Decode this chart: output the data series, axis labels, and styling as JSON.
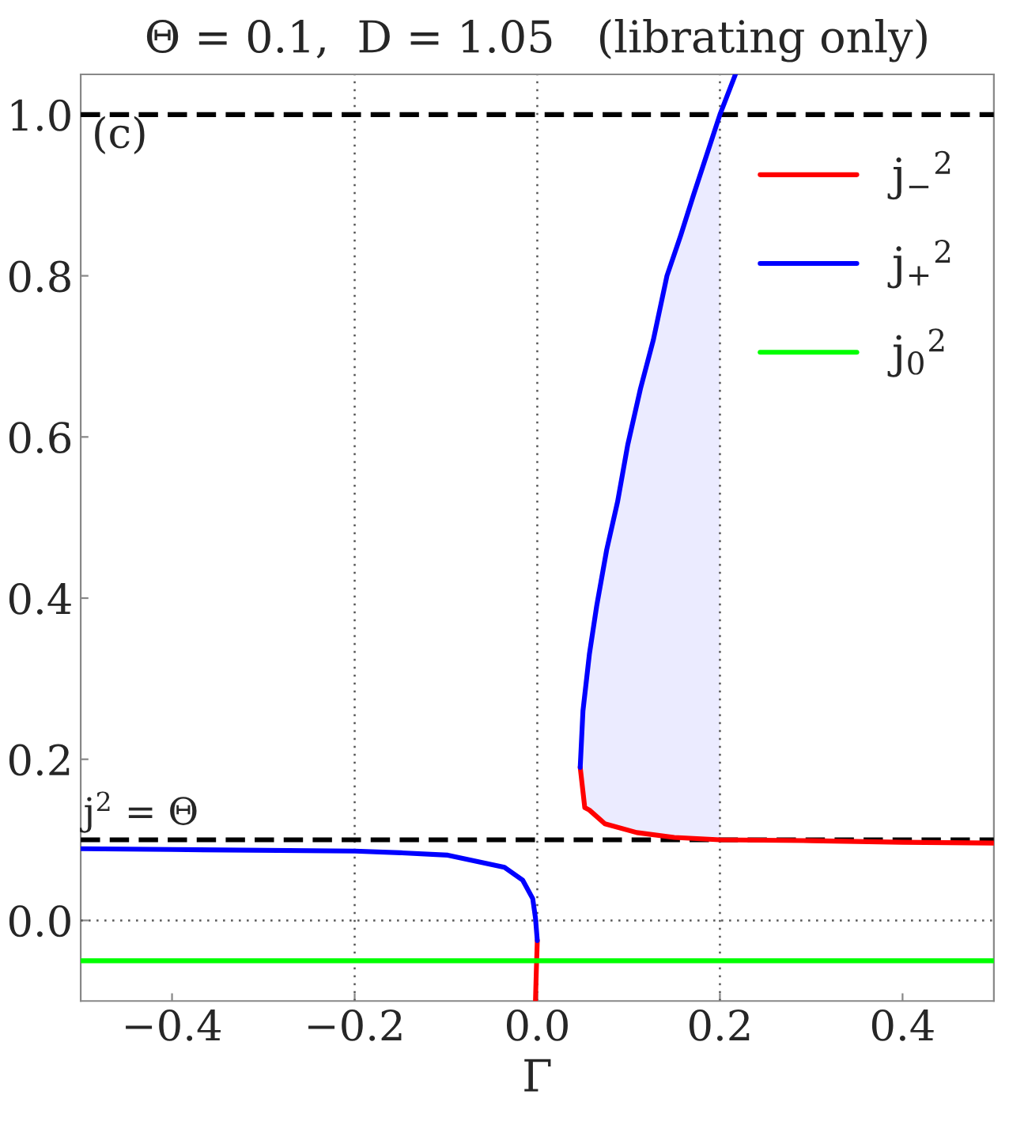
{
  "chart_data": {
    "type": "line",
    "title": "Θ = 0.1,  D = 1.05   (librating only)",
    "xlabel": "Γ",
    "xlim": [
      -0.5,
      0.5
    ],
    "ylim": [
      -0.1,
      1.05
    ],
    "xticks": [
      {
        "value": -0.4,
        "label": "−0.4"
      },
      {
        "value": -0.2,
        "label": "−0.2"
      },
      {
        "value": 0.0,
        "label": "0.0"
      },
      {
        "value": 0.2,
        "label": "0.2"
      },
      {
        "value": 0.4,
        "label": "0.4"
      }
    ],
    "yticks": [
      {
        "value": 0.0,
        "label": "0.0"
      },
      {
        "value": 0.2,
        "label": "0.2"
      },
      {
        "value": 0.4,
        "label": "0.4"
      },
      {
        "value": 0.6,
        "label": "0.6"
      },
      {
        "value": 0.8,
        "label": "0.8"
      },
      {
        "value": 1.0,
        "label": "1.0"
      }
    ],
    "series": [
      {
        "name": "j$_{−}$$^{2}$",
        "color": "#ff0000",
        "x": [
          -0.002,
          -0.001,
          0.0,
          0.02,
          0.047,
          0.052,
          0.057,
          0.074,
          0.109,
          0.15,
          0.2,
          0.3,
          0.4,
          0.5
        ],
        "values": [
          -0.1,
          -0.06,
          -0.025,
          null,
          0.19,
          0.14,
          0.137,
          0.12,
          0.109,
          0.103,
          0.1,
          0.099,
          0.097,
          0.096
        ]
      },
      {
        "name": "j$_{+}$$^{2}$",
        "color": "#0000ff",
        "x": [
          -0.5,
          -0.4,
          -0.2,
          -0.15,
          -0.098,
          -0.036,
          -0.016,
          -0.005,
          -0.002,
          0.0,
          0.02,
          0.047,
          0.05,
          0.057,
          0.065,
          0.076,
          0.088,
          0.099,
          0.113,
          0.127,
          0.142,
          0.157,
          0.171,
          0.2,
          0.217
        ],
        "values": [
          0.089,
          0.088,
          0.086,
          0.084,
          0.081,
          0.066,
          0.05,
          0.027,
          0.003,
          -0.025,
          null,
          0.19,
          0.26,
          0.33,
          0.39,
          0.46,
          0.52,
          0.59,
          0.66,
          0.72,
          0.8,
          0.85,
          0.9,
          1.0,
          1.05
        ],
        "lower": [
          null,
          null,
          null,
          null,
          null,
          null,
          null,
          null,
          null,
          null,
          null,
          0.17,
          0.155,
          0.137,
          0.128,
          0.122,
          0.117,
          0.113,
          0.109,
          0.106,
          0.104,
          0.103,
          0.102,
          0.1,
          null
        ],
        "upper": [
          null,
          null,
          null,
          null,
          null,
          null,
          null,
          null,
          null,
          null,
          null,
          0.19,
          0.26,
          0.33,
          0.39,
          0.46,
          0.52,
          0.59,
          0.66,
          0.72,
          0.8,
          0.85,
          0.9,
          1.0,
          null
        ]
      },
      {
        "name": "j$_{0}$$^{2}$",
        "color": "#00ff00",
        "x": [
          -0.5,
          0.5
        ],
        "values": [
          -0.05,
          -0.05
        ]
      }
    ],
    "ref_lines": [
      {
        "axis": "y",
        "value": 1.0,
        "line_style": "dashed",
        "color": "#000000"
      },
      {
        "axis": "y",
        "value": 0.1,
        "line_style": "dashed",
        "color": "#000000",
        "label": "j$^{2}$ = Θ"
      },
      {
        "axis": "x",
        "value": -0.2,
        "line_style": "dotted",
        "color": "#555555"
      },
      {
        "axis": "x",
        "value": 0.0,
        "line_style": "dotted",
        "color": "#555555"
      },
      {
        "axis": "x",
        "value": 0.2,
        "line_style": "dotted",
        "color": "#555555"
      },
      {
        "axis": "y",
        "value": 0.0,
        "line_style": "dotted",
        "color": "#555555"
      }
    ],
    "annotations": [
      "(c)"
    ],
    "legend": "top right",
    "grid": false
  }
}
